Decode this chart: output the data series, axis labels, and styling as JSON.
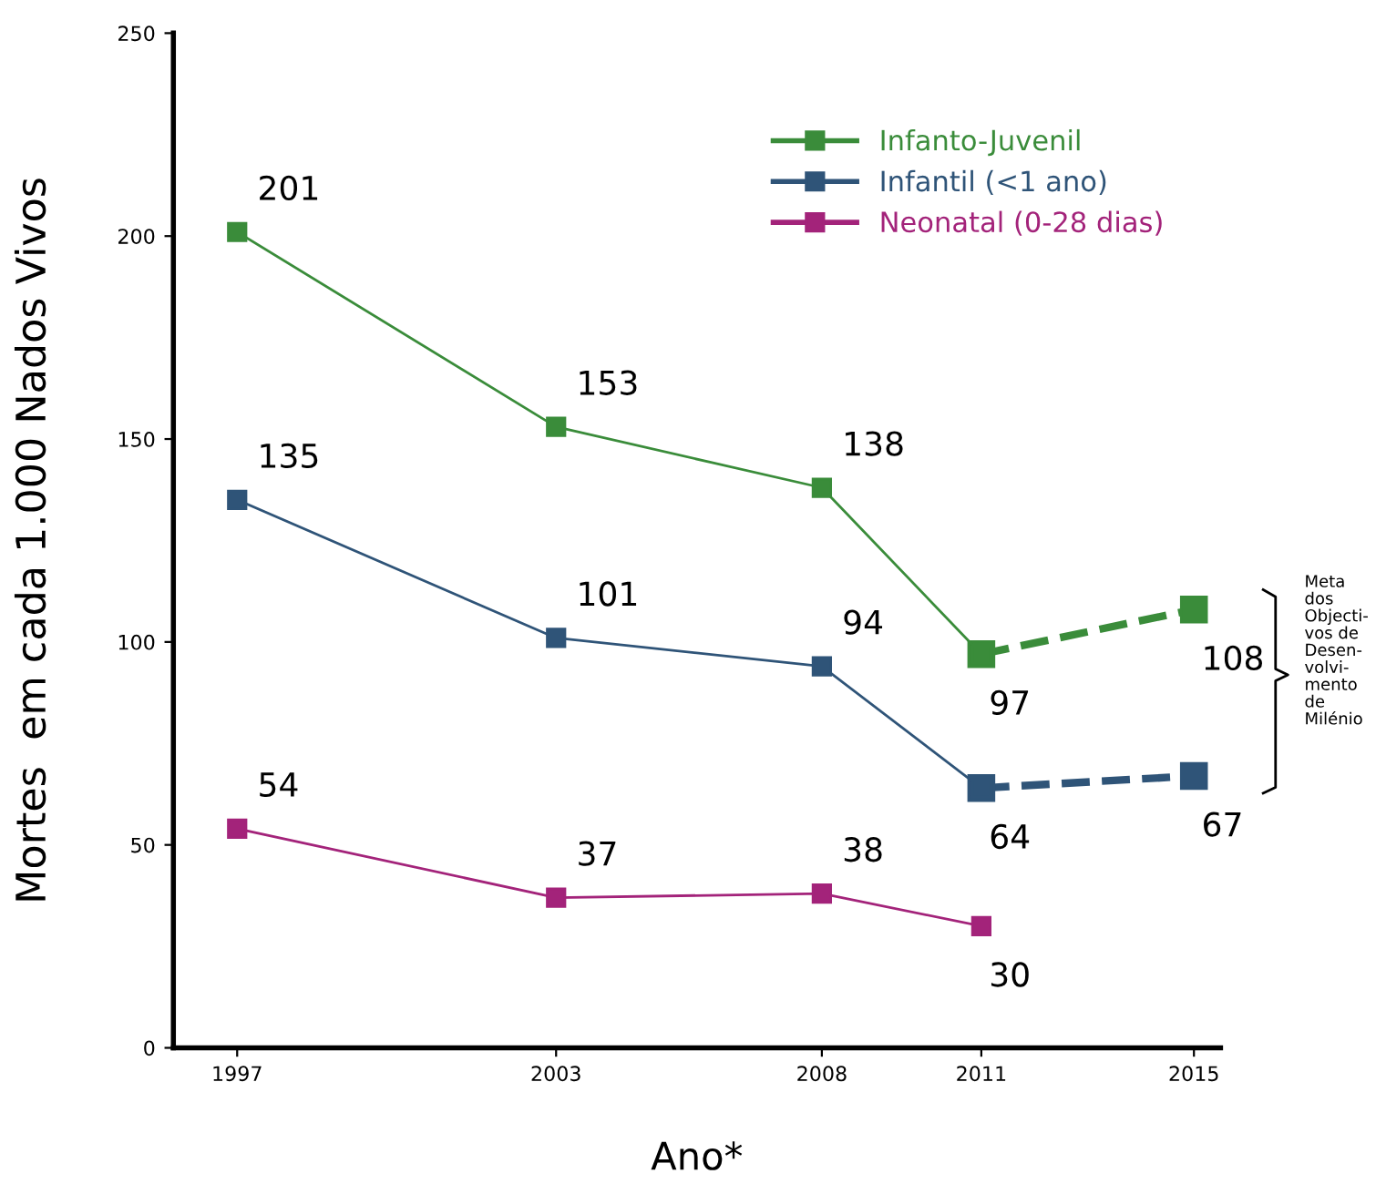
{
  "chart_data": {
    "type": "line",
    "xlabel": "Ano*",
    "ylabel": "Mortes  em cada 1.000 Nados Vivos",
    "xlim": [
      1995.8,
      2015.5
    ],
    "xticks": [
      1997,
      2003,
      2008,
      2011,
      2015
    ],
    "ylim": [
      0,
      250
    ],
    "yticks": [
      0,
      50,
      100,
      150,
      200,
      250
    ],
    "grid": false,
    "legend": "top right",
    "marker": "square",
    "data_labels": true,
    "series": [
      {
        "name": "Infanto-Juvenil",
        "color": "#3a8c3a",
        "x": [
          1997,
          2003,
          2008,
          2011
        ],
        "values": [
          201,
          153,
          138,
          97
        ],
        "line_style": "solid"
      },
      {
        "name": "Infantil (<1 ano)",
        "color": "#2f5478",
        "x": [
          1997,
          2003,
          2008,
          2011
        ],
        "values": [
          135,
          101,
          94,
          64
        ],
        "line_style": "solid"
      },
      {
        "name": "Neonatal (0-28 dias)",
        "color": "#a3237a",
        "x": [
          1997,
          2003,
          2008,
          2011
        ],
        "values": [
          54,
          37,
          38,
          30
        ],
        "line_style": "solid"
      },
      {
        "color": "#3a8c3a",
        "x": [
          2011,
          2015
        ],
        "values": [
          97,
          108
        ],
        "value_labels": [
          null,
          "108"
        ],
        "line_style": "dashed"
      },
      {
        "color": "#2f5478",
        "x": [
          2011,
          2015
        ],
        "values": [
          64,
          67
        ],
        "value_labels": [
          null,
          "67"
        ],
        "line_style": "dashed"
      }
    ],
    "annotations": [
      "Meta\ndos\nObjecti-\nvos de\nDesen-\nvolvi-\nmento\nde\nMilénio"
    ]
  }
}
